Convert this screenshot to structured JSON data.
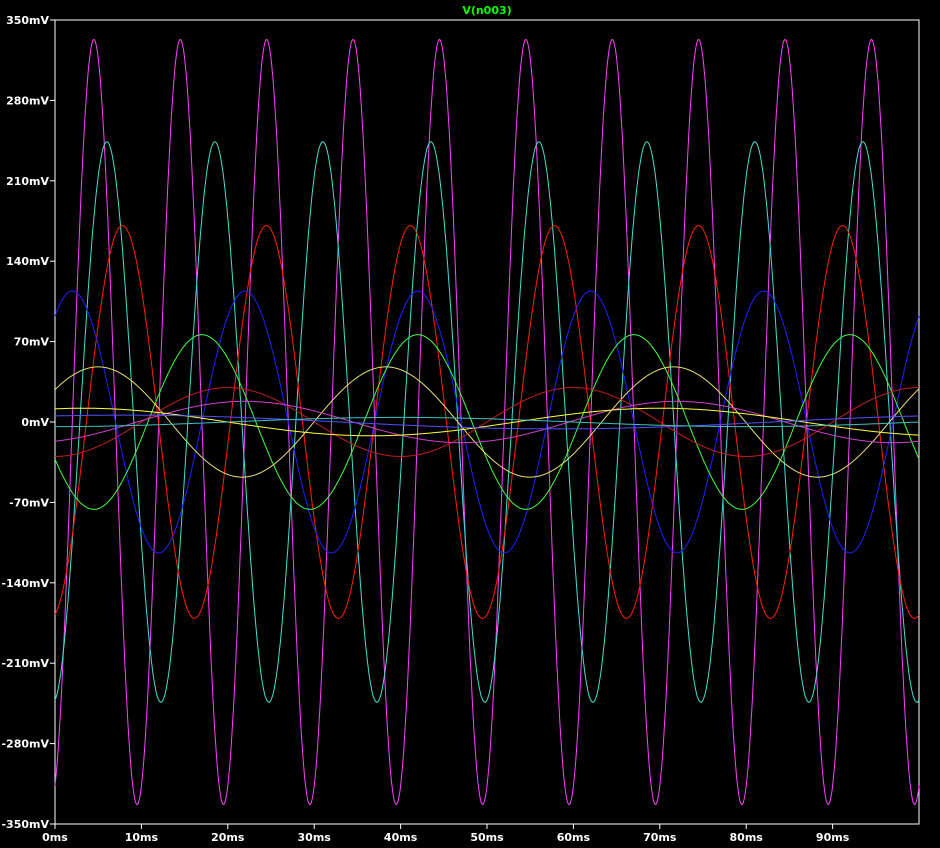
{
  "chart_data": {
    "type": "line",
    "title": "V(n003)",
    "title_color": "#00ff00",
    "background": "#000000",
    "grid": false,
    "legend": "none",
    "xlim": [
      0,
      100
    ],
    "ylim": [
      -350,
      350
    ],
    "x_unit": "ms",
    "y_unit": "mV",
    "x_ticks": [
      {
        "value": 0,
        "label": "0ms"
      },
      {
        "value": 10,
        "label": "10ms"
      },
      {
        "value": 20,
        "label": "20ms"
      },
      {
        "value": 30,
        "label": "30ms"
      },
      {
        "value": 40,
        "label": "40ms"
      },
      {
        "value": 50,
        "label": "50ms"
      },
      {
        "value": 60,
        "label": "60ms"
      },
      {
        "value": 70,
        "label": "70ms"
      },
      {
        "value": 80,
        "label": "80ms"
      },
      {
        "value": 90,
        "label": "90ms"
      }
    ],
    "y_ticks": [
      {
        "value": 350,
        "label": "350mV"
      },
      {
        "value": 280,
        "label": "280mV"
      },
      {
        "value": 210,
        "label": "210mV"
      },
      {
        "value": 140,
        "label": "140mV"
      },
      {
        "value": 70,
        "label": "70mV"
      },
      {
        "value": 0,
        "label": "0mV"
      },
      {
        "value": -70,
        "label": "-70mV"
      },
      {
        "value": -140,
        "label": "-140mV"
      },
      {
        "value": -210,
        "label": "-210mV"
      },
      {
        "value": -280,
        "label": "-280mV"
      },
      {
        "value": -350,
        "label": "-350mV"
      }
    ],
    "series": [
      {
        "color": "#ff40ff",
        "amplitude_mV": 333,
        "period_ms": 10,
        "first_peak_ms": 4.5
      },
      {
        "color": "#40e0d0",
        "amplitude_mV": 244,
        "period_ms": 12.5,
        "first_peak_ms": 6.0
      },
      {
        "color": "#ff2000",
        "amplitude_mV": 171,
        "period_ms": 16.67,
        "first_peak_ms": 7.8
      },
      {
        "color": "#2020ff",
        "amplitude_mV": 114,
        "period_ms": 20,
        "first_peak_ms": 2.0
      },
      {
        "color": "#40ff40",
        "amplitude_mV": 76,
        "period_ms": 25,
        "first_peak_ms": 17.0
      },
      {
        "color": "#e8e070",
        "amplitude_mV": 48,
        "period_ms": 33.3,
        "first_peak_ms": 5.0
      },
      {
        "color": "#c02020",
        "amplitude_mV": 30,
        "period_ms": 40,
        "first_peak_ms": 20.0
      },
      {
        "color": "#d040d0",
        "amplitude_mV": 18,
        "period_ms": 50,
        "first_peak_ms": 22.0
      },
      {
        "color": "#ffff40",
        "amplitude_mV": 12,
        "period_ms": 66.7,
        "first_peak_ms": 70.0
      },
      {
        "color": "#5050ff",
        "amplitude_mV": 6,
        "period_ms": 100,
        "first_peak_ms": 8.0
      },
      {
        "color": "#40c0c0",
        "amplitude_mV": 4,
        "period_ms": 80,
        "first_peak_ms": 40.0
      }
    ]
  }
}
